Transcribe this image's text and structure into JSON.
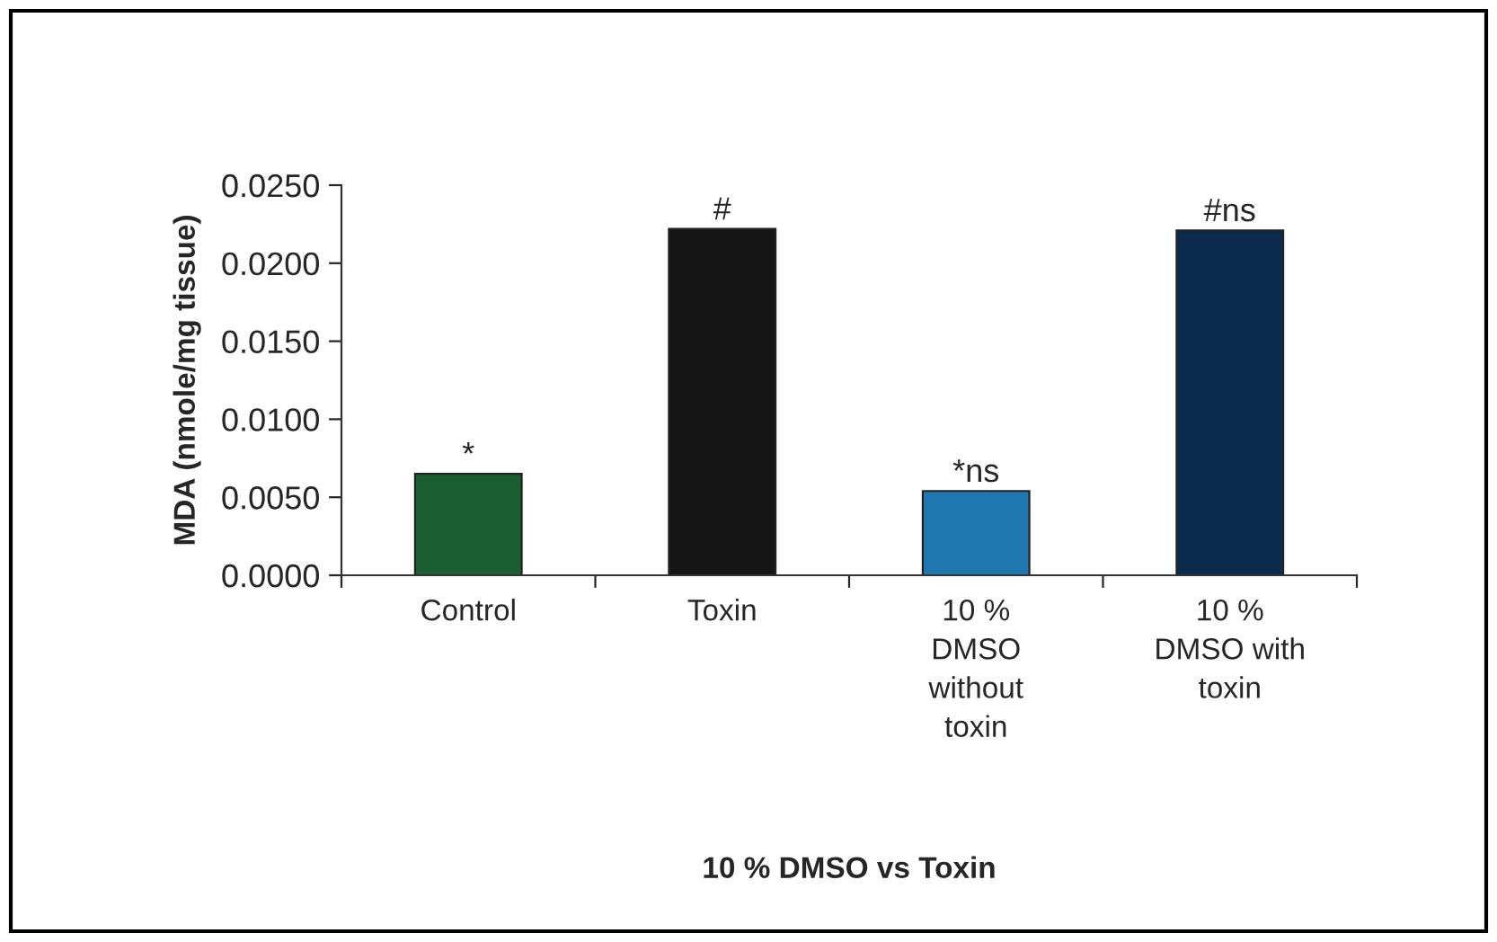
{
  "chart_data": {
    "type": "bar",
    "xlabel": "10 % DMSO vs Toxin",
    "ylabel": "MDA (nmole/mg tissue)",
    "categories": [
      "Control",
      "Toxin",
      "10 %\nDMSO\nwithout\ntoxin",
      "10 %\nDMSO with\ntoxin"
    ],
    "values": [
      0.0065,
      0.0222,
      0.0054,
      0.0221
    ],
    "colors": [
      "#1b5e32",
      "#161616",
      "#1f78b0",
      "#0b2c4e"
    ],
    "value_labels": [
      "*",
      "#",
      "*ns",
      "#ns"
    ],
    "ylim": [
      0,
      0.025
    ],
    "yticks": [
      {
        "value": 0,
        "label": "0.0000"
      },
      {
        "value": 0.005,
        "label": "0.0050"
      },
      {
        "value": 0.01,
        "label": "0.0100"
      },
      {
        "value": 0.015,
        "label": "0.0150"
      },
      {
        "value": 0.02,
        "label": "0.0200"
      },
      {
        "value": 0.025,
        "label": "0.0250"
      }
    ],
    "grid": false,
    "legend": false
  }
}
